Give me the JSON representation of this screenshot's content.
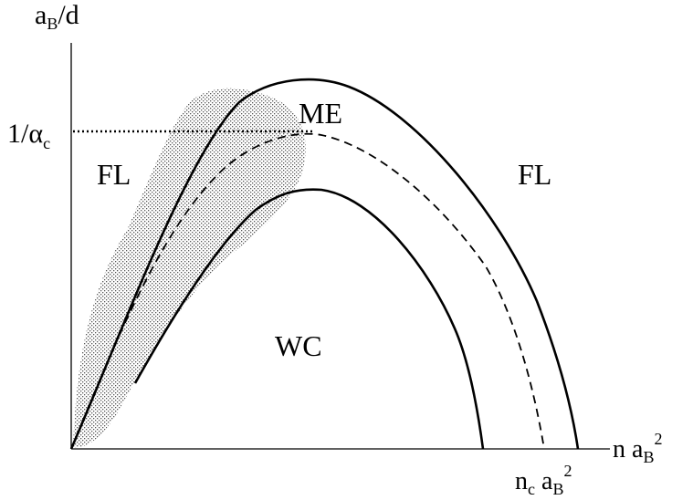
{
  "axes": {
    "y_label": {
      "main": "a",
      "sub": "B",
      "tail": "/d"
    },
    "x_label": {
      "main": "n a",
      "sub": "B",
      "sup": "2"
    },
    "y_marker": {
      "main": "1/α",
      "sub": "c"
    },
    "x_marker": {
      "main": "n",
      "sub": "c",
      "mid": " a",
      "sub2": "B",
      "sup": "2"
    }
  },
  "regions": {
    "fl_left": "FL",
    "fl_right": "FL",
    "me": "ME",
    "wc": "WC"
  }
}
